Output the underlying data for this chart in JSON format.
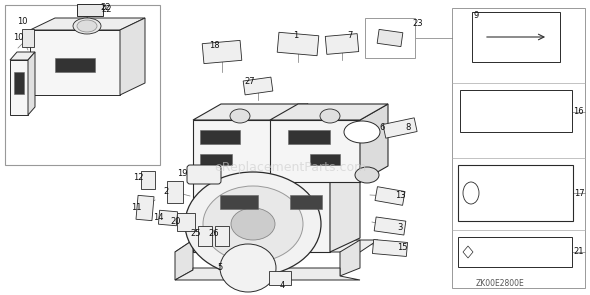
{
  "bg_color": "#ffffff",
  "line_color": "#2a2a2a",
  "light_gray": "#aaaaaa",
  "mid_gray": "#888888",
  "dark_gray": "#555555",
  "watermark_text": "eReplacementParts.com",
  "diagram_code": "ZK00E2800E",
  "fig_w": 5.9,
  "fig_h": 2.95,
  "dpi": 100
}
